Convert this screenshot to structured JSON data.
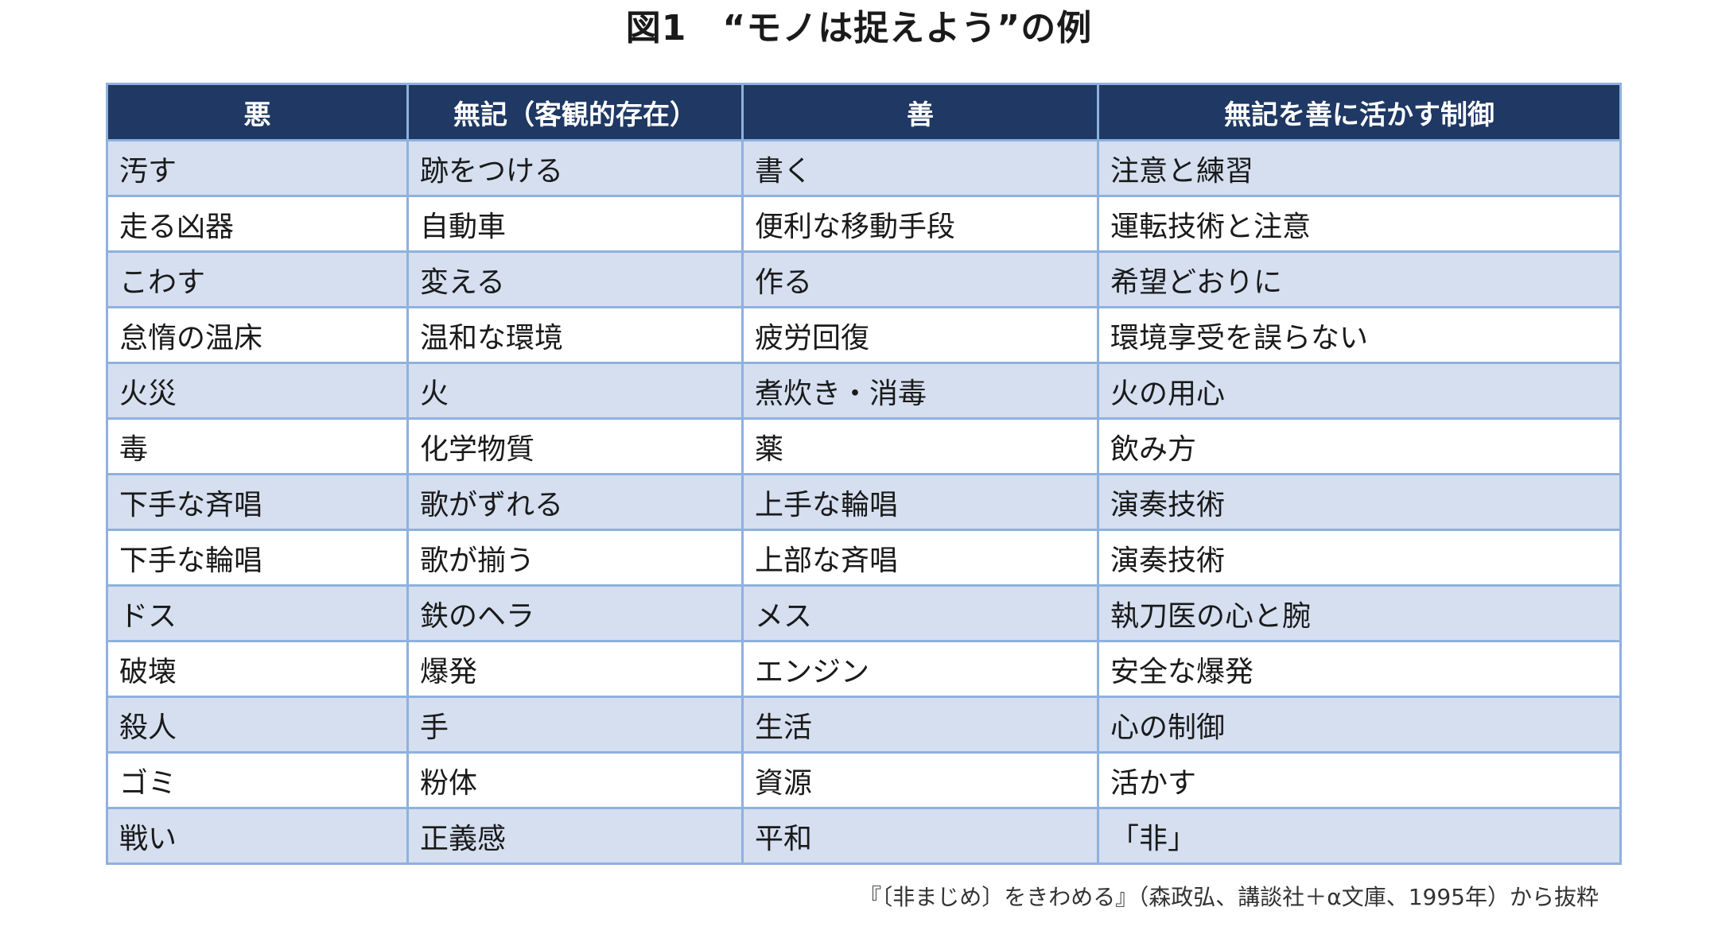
{
  "title": "図1　“モノは捉えよう”の例",
  "table": {
    "headers": [
      "悪",
      "無記（客観的存在）",
      "善",
      "無記を善に活かす制御"
    ],
    "rows": [
      [
        "汚す",
        "跡をつける",
        "書く",
        "注意と練習"
      ],
      [
        "走る凶器",
        "自動車",
        "便利な移動手段",
        "運転技術と注意"
      ],
      [
        "こわす",
        "変える",
        "作る",
        "希望どおりに"
      ],
      [
        "怠惰の温床",
        "温和な環境",
        "疲労回復",
        "環境享受を誤らない"
      ],
      [
        "火災",
        "火",
        "煮炊き・消毒",
        "火の用心"
      ],
      [
        "毒",
        "化学物質",
        "薬",
        "飲み方"
      ],
      [
        "下手な斉唱",
        "歌がずれる",
        "上手な輪唱",
        "演奏技術"
      ],
      [
        "下手な輪唱",
        "歌が揃う",
        "上部な斉唱",
        "演奏技術"
      ],
      [
        "ドス",
        "鉄のヘラ",
        "メス",
        "執刀医の心と腕"
      ],
      [
        "破壊",
        "爆発",
        "エンジン",
        "安全な爆発"
      ],
      [
        "殺人",
        "手",
        "生活",
        "心の制御"
      ],
      [
        "ゴミ",
        "粉体",
        "資源",
        "活かす"
      ],
      [
        "戦い",
        "正義感",
        "平和",
        "「非」"
      ]
    ]
  },
  "citation": "『〔非まじめ〕をきわめる』（森政弘、講談社＋α文庫、1995年）から抜粋",
  "colors": {
    "header_bg": "#1f3864",
    "row_alt_bg": "#d5dff0",
    "border": "#8fb1de"
  }
}
